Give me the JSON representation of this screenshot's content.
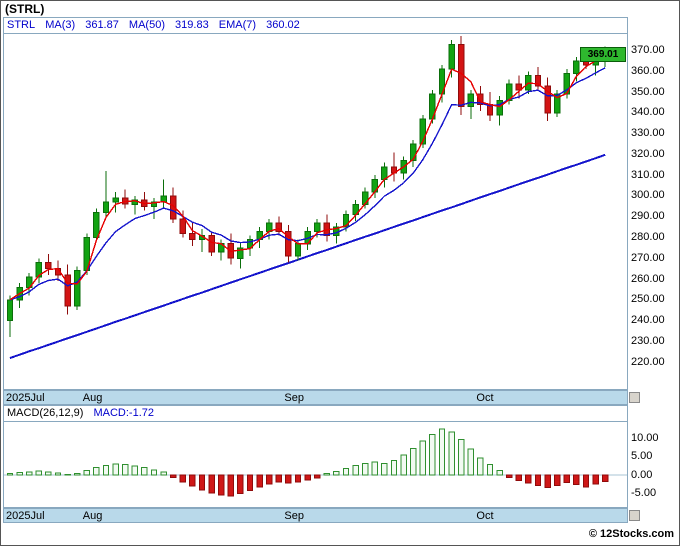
{
  "header": {
    "title": "(STRL)"
  },
  "footer": {
    "credit": "© 12Stocks.com"
  },
  "colors": {
    "up_green": "#12a312",
    "up_green_stroke": "#0b6e0b",
    "down_red": "#d31414",
    "down_red_stroke": "#8f0b0b",
    "ma_blue": "#1414cc",
    "ma_red": "#e60000",
    "macd_pos_fill": "#f2faf2",
    "macd_pos_stroke": "#2f8f2f",
    "macd_neg_fill": "#cf1717",
    "macd_neg_stroke": "#8f0b0b",
    "band_blue": "#b9d9ea",
    "border_blue": "#89a8bf",
    "badge_green": "#2eb82e",
    "legend_blue": "#0000cc"
  },
  "main_chart": {
    "legend": {
      "symbol": "STRL",
      "ma3_label": "MA(3)",
      "ma3_value": "361.87",
      "ma50_label": "MA(50)",
      "ma50_value": "319.83",
      "ema7_label": "EMA(7)",
      "ema7_value": "360.02"
    },
    "price_tag": "369.01",
    "y_tick_labels": [
      "370.00",
      "360.00",
      "350.00",
      "340.00",
      "330.00",
      "320.00",
      "310.00",
      "300.00",
      "290.00",
      "280.00",
      "270.00",
      "260.00",
      "250.00",
      "240.00",
      "230.00",
      "220.00"
    ]
  },
  "macd_chart": {
    "legend_label": "MACD(26,12,9)",
    "legend_value": "MACD:-1.72",
    "y_tick_labels": [
      "10.00",
      "5.00",
      "0.00",
      "-5.00"
    ]
  },
  "x_axis": {
    "months": [
      {
        "label": "2025Jul",
        "index": 0
      },
      {
        "label": "Aug",
        "index": 8
      },
      {
        "label": "Sep",
        "index": 29
      },
      {
        "label": "Oct",
        "index": 49
      }
    ]
  },
  "chart_data": [
    {
      "type": "candlestick",
      "symbol": "STRL",
      "last_price": 369.01,
      "indicators": {
        "ma3": 361.87,
        "ma50": 319.83,
        "ema7": 360.02
      },
      "ylim": [
        209,
        377
      ],
      "y_ticks": [
        370,
        360,
        350,
        340,
        330,
        320,
        310,
        300,
        290,
        280,
        270,
        260,
        250,
        240,
        230,
        220
      ],
      "x_ticks": [
        {
          "label": "2025Jul",
          "index": 0
        },
        {
          "label": "Aug",
          "index": 8
        },
        {
          "label": "Sep",
          "index": 29
        },
        {
          "label": "Oct",
          "index": 49
        }
      ],
      "ohlc": [
        [
          240,
          252,
          232,
          250
        ],
        [
          250,
          258,
          246,
          256
        ],
        [
          256,
          263,
          252,
          261
        ],
        [
          261,
          270,
          258,
          268
        ],
        [
          268,
          272,
          262,
          265
        ],
        [
          265,
          269,
          259,
          262
        ],
        [
          262,
          267,
          243,
          247
        ],
        [
          247,
          266,
          245,
          264
        ],
        [
          264,
          282,
          262,
          280
        ],
        [
          280,
          294,
          278,
          292
        ],
        [
          292,
          312,
          290,
          297
        ],
        [
          297,
          302,
          292,
          299
        ],
        [
          299,
          303,
          294,
          296
        ],
        [
          296,
          300,
          291,
          298
        ],
        [
          298,
          302,
          293,
          295
        ],
        [
          295,
          299,
          289,
          297
        ],
        [
          297,
          308,
          294,
          300
        ],
        [
          300,
          304,
          287,
          289
        ],
        [
          289,
          293,
          280,
          282
        ],
        [
          282,
          287,
          276,
          279
        ],
        [
          279,
          284,
          273,
          281
        ],
        [
          281,
          283,
          271,
          273
        ],
        [
          273,
          279,
          269,
          277
        ],
        [
          277,
          282,
          267,
          270
        ],
        [
          270,
          277,
          265,
          275
        ],
        [
          275,
          281,
          271,
          279
        ],
        [
          279,
          285,
          275,
          283
        ],
        [
          283,
          289,
          279,
          287
        ],
        [
          287,
          290,
          281,
          283
        ],
        [
          283,
          286,
          268,
          271
        ],
        [
          271,
          279,
          269,
          277
        ],
        [
          277,
          285,
          274,
          283
        ],
        [
          283,
          289,
          280,
          287
        ],
        [
          287,
          291,
          278,
          281
        ],
        [
          281,
          287,
          277,
          285
        ],
        [
          285,
          293,
          283,
          291
        ],
        [
          291,
          298,
          288,
          296
        ],
        [
          296,
          304,
          294,
          302
        ],
        [
          302,
          310,
          299,
          308
        ],
        [
          308,
          316,
          304,
          314
        ],
        [
          314,
          321,
          307,
          311
        ],
        [
          311,
          319,
          308,
          317
        ],
        [
          317,
          327,
          314,
          325
        ],
        [
          325,
          339,
          323,
          337
        ],
        [
          337,
          351,
          335,
          349
        ],
        [
          349,
          363,
          345,
          361
        ],
        [
          361,
          375,
          357,
          373
        ],
        [
          373,
          377,
          339,
          343
        ],
        [
          343,
          351,
          337,
          349
        ],
        [
          349,
          353,
          341,
          344
        ],
        [
          344,
          350,
          336,
          339
        ],
        [
          339,
          348,
          334,
          346
        ],
        [
          346,
          356,
          344,
          354
        ],
        [
          354,
          358,
          347,
          351
        ],
        [
          351,
          360,
          349,
          358
        ],
        [
          358,
          362,
          351,
          353
        ],
        [
          353,
          357,
          336,
          340
        ],
        [
          340,
          351,
          338,
          349
        ],
        [
          349,
          361,
          347,
          359
        ],
        [
          359,
          367,
          355,
          365
        ],
        [
          365,
          371,
          361,
          363
        ],
        [
          363,
          369,
          358,
          367
        ],
        [
          367,
          372,
          362,
          369.01
        ]
      ],
      "ma50": [
        222.0,
        223.6,
        225.2,
        226.7,
        228.3,
        229.9,
        231.5,
        233.0,
        234.6,
        236.2,
        237.8,
        239.4,
        240.9,
        242.5,
        244.1,
        245.7,
        247.2,
        248.8,
        250.4,
        252.0,
        253.5,
        255.1,
        256.7,
        258.3,
        259.9,
        261.4,
        263.0,
        264.6,
        266.2,
        267.7,
        269.3,
        270.9,
        272.5,
        274.0,
        275.6,
        277.2,
        278.8,
        280.4,
        281.9,
        283.5,
        285.1,
        286.7,
        288.2,
        289.8,
        291.4,
        293.0,
        294.5,
        296.1,
        297.7,
        299.3,
        300.9,
        302.4,
        304.0,
        305.6,
        307.2,
        308.7,
        310.3,
        311.9,
        313.5,
        315.0,
        316.6,
        318.2,
        319.8
      ]
    },
    {
      "type": "bar",
      "title": "MACD(26,12,9)",
      "last": -1.72,
      "ylim": [
        -7.8,
        13.8
      ],
      "y_ticks": [
        10,
        5,
        0,
        -5
      ],
      "values": [
        0.5,
        0.7,
        0.9,
        1.1,
        0.9,
        0.6,
        0.2,
        0.4,
        1.2,
        2.0,
        2.6,
        3.0,
        2.9,
        2.5,
        2.0,
        1.4,
        0.8,
        -0.6,
        -1.8,
        -3.0,
        -4.0,
        -4.8,
        -5.4,
        -5.6,
        -5.0,
        -4.2,
        -3.2,
        -2.4,
        -1.8,
        -2.2,
        -1.8,
        -1.3,
        -0.8,
        0.4,
        1.0,
        1.8,
        2.6,
        3.2,
        3.6,
        3.2,
        4.0,
        5.4,
        7.2,
        9.2,
        11.0,
        12.4,
        11.6,
        9.6,
        7.0,
        4.6,
        2.8,
        1.2,
        -0.6,
        -1.4,
        -2.2,
        -2.8,
        -3.4,
        -2.8,
        -2.0,
        -2.6,
        -3.2,
        -2.4,
        -1.72
      ]
    }
  ]
}
